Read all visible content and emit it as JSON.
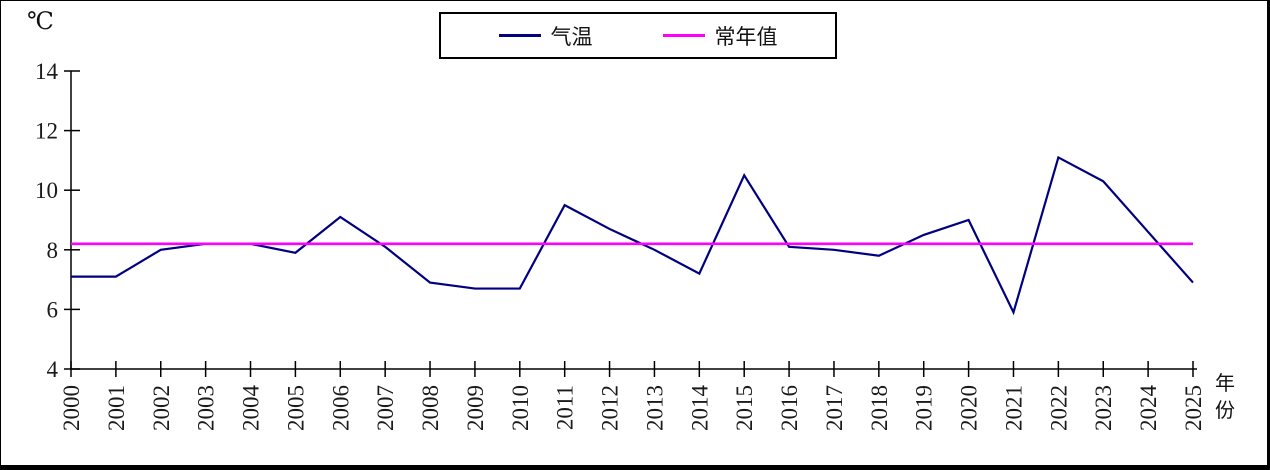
{
  "chart_data": {
    "type": "line",
    "title": "",
    "unit_label": "℃",
    "xlabel": "年份",
    "xlabel_lines": [
      "年",
      "份"
    ],
    "categories": [
      "2000",
      "2001",
      "2002",
      "2003",
      "2004",
      "2005",
      "2006",
      "2007",
      "2008",
      "2009",
      "2010",
      "2011",
      "2012",
      "2013",
      "2014",
      "2015",
      "2016",
      "2017",
      "2018",
      "2019",
      "2020",
      "2021",
      "2022",
      "2023",
      "2024",
      "2025"
    ],
    "series": [
      {
        "name": "气温",
        "color": "#000080",
        "values": [
          7.1,
          7.1,
          8.0,
          8.2,
          8.2,
          7.9,
          9.1,
          8.1,
          6.9,
          6.7,
          6.7,
          9.5,
          8.7,
          8.0,
          7.2,
          10.5,
          8.1,
          8.0,
          7.8,
          8.5,
          9.0,
          5.9,
          11.1,
          10.3,
          8.6,
          6.9
        ]
      },
      {
        "name": "常年值",
        "color": "#FF00FF",
        "values": [
          8.2,
          8.2,
          8.2,
          8.2,
          8.2,
          8.2,
          8.2,
          8.2,
          8.2,
          8.2,
          8.2,
          8.2,
          8.2,
          8.2,
          8.2,
          8.2,
          8.2,
          8.2,
          8.2,
          8.2,
          8.2,
          8.2,
          8.2,
          8.2,
          8.2,
          8.2
        ]
      }
    ],
    "ylim": [
      4,
      14
    ],
    "yticks": [
      4,
      6,
      8,
      10,
      12,
      14
    ],
    "grid": false,
    "legend_position": "top-center"
  }
}
